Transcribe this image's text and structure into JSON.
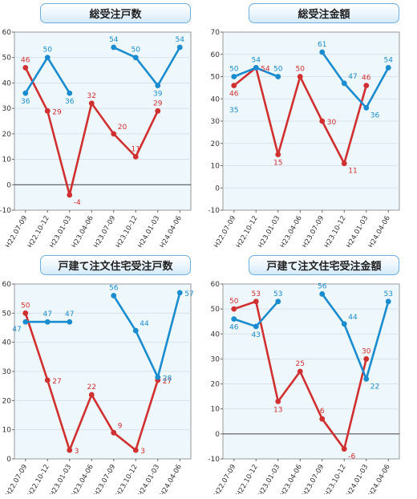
{
  "chart_data": [
    {
      "type": "line",
      "title": "総受注戸数",
      "categories": [
        "H22.07-09",
        "H22.10-12",
        "H23.01-03",
        "H23.04-06",
        "H23.07-09",
        "H23.10-12",
        "H24.01-03",
        "H24.04-06"
      ],
      "ylim": [
        -10,
        60
      ],
      "yticks": [
        -10,
        0,
        10,
        20,
        30,
        40,
        50,
        60
      ],
      "zero_line": true,
      "grid": true,
      "series": [
        {
          "color": "#d03030",
          "values": [
            46,
            29,
            -4,
            32,
            20,
            11,
            29,
            null
          ]
        },
        {
          "color": "#1a8ccf",
          "values": [
            36,
            50,
            36,
            null,
            54,
            50,
            39,
            54
          ]
        }
      ],
      "labels": [
        {
          "series": 0,
          "index": 0,
          "text": "46",
          "pos": "above"
        },
        {
          "series": 0,
          "index": 1,
          "text": "29",
          "pos": "right"
        },
        {
          "series": 0,
          "index": 2,
          "text": "-4",
          "pos": "belowright"
        },
        {
          "series": 0,
          "index": 3,
          "text": "32",
          "pos": "above"
        },
        {
          "series": 0,
          "index": 4,
          "text": "20",
          "pos": "aboveright"
        },
        {
          "series": 0,
          "index": 5,
          "text": "11",
          "pos": "above"
        },
        {
          "series": 0,
          "index": 6,
          "text": "29",
          "pos": "above"
        },
        {
          "series": 1,
          "index": 0,
          "text": "36",
          "pos": "below"
        },
        {
          "series": 1,
          "index": 1,
          "text": "50",
          "pos": "above"
        },
        {
          "series": 1,
          "index": 2,
          "text": "36",
          "pos": "below"
        },
        {
          "series": 1,
          "index": 4,
          "text": "54",
          "pos": "above"
        },
        {
          "series": 1,
          "index": 5,
          "text": "50",
          "pos": "above"
        },
        {
          "series": 1,
          "index": 6,
          "text": "39",
          "pos": "below"
        },
        {
          "series": 1,
          "index": 7,
          "text": "54",
          "pos": "above"
        }
      ]
    },
    {
      "type": "line",
      "title": "総受注金額",
      "categories": [
        "H22.07-09",
        "H22.10-12",
        "H23.01-03",
        "H23.04-06",
        "H23.07-09",
        "H23.10-12",
        "H24.01-03",
        "H24.04-06"
      ],
      "ylim": [
        -10,
        70
      ],
      "yticks": [
        -10,
        0,
        10,
        20,
        30,
        40,
        50,
        60,
        70
      ],
      "zero_line": false,
      "grid": true,
      "series": [
        {
          "color": "#d03030",
          "values": [
            46,
            54,
            15,
            50,
            30,
            11,
            46,
            null
          ]
        },
        {
          "color": "#1a8ccf",
          "values": [
            50,
            54,
            50,
            null,
            61,
            47,
            36,
            54
          ]
        }
      ],
      "labels": [
        {
          "series": 0,
          "index": 0,
          "text": "46",
          "pos": "below"
        },
        {
          "series": 0,
          "index": 1,
          "text": "54",
          "pos": "right"
        },
        {
          "series": 0,
          "index": 2,
          "text": "15",
          "pos": "below"
        },
        {
          "series": 0,
          "index": 3,
          "text": "50",
          "pos": "above"
        },
        {
          "series": 0,
          "index": 4,
          "text": "30",
          "pos": "right"
        },
        {
          "series": 0,
          "index": 5,
          "text": "11",
          "pos": "belowright"
        },
        {
          "series": 0,
          "index": 6,
          "text": "46",
          "pos": "above"
        },
        {
          "series": 1,
          "index": 0,
          "text": "50",
          "pos": "above"
        },
        {
          "series": 1,
          "index": 1,
          "text": "54",
          "pos": "above"
        },
        {
          "series": 1,
          "index": 2,
          "text": "50",
          "pos": "above"
        },
        {
          "series": 1,
          "index": 4,
          "text": "61",
          "pos": "above"
        },
        {
          "series": 1,
          "index": 5,
          "text": "47",
          "pos": "aboveright"
        },
        {
          "series": 1,
          "index": 6,
          "text": "36",
          "pos": "belowright"
        },
        {
          "series": 1,
          "index": 7,
          "text": "54",
          "pos": "above"
        }
      ],
      "free_labels": [
        {
          "text": "35",
          "x_index": 0,
          "y": 35,
          "color": "#1a8ccf"
        }
      ]
    },
    {
      "type": "line",
      "title": "戸建て注文住宅受注戸数",
      "categories": [
        "H22.07-09",
        "H22.10-12",
        "H23.01-03",
        "H23.04-06",
        "H23.07-09",
        "H23.10-12",
        "H24.01-03",
        "H24.04-06"
      ],
      "ylim": [
        0,
        60
      ],
      "yticks": [
        0,
        10,
        20,
        30,
        40,
        50,
        60
      ],
      "zero_line": false,
      "grid": true,
      "series": [
        {
          "color": "#d03030",
          "values": [
            50,
            27,
            3,
            22,
            9,
            3,
            27,
            null
          ]
        },
        {
          "color": "#1a8ccf",
          "values": [
            47,
            47,
            47,
            null,
            56,
            44,
            28,
            57
          ]
        }
      ],
      "labels": [
        {
          "series": 0,
          "index": 0,
          "text": "50",
          "pos": "above"
        },
        {
          "series": 0,
          "index": 1,
          "text": "27",
          "pos": "right"
        },
        {
          "series": 0,
          "index": 2,
          "text": "3",
          "pos": "right"
        },
        {
          "series": 0,
          "index": 3,
          "text": "22",
          "pos": "above"
        },
        {
          "series": 0,
          "index": 4,
          "text": "9",
          "pos": "aboveright"
        },
        {
          "series": 0,
          "index": 5,
          "text": "3",
          "pos": "right"
        },
        {
          "series": 0,
          "index": 6,
          "text": "27",
          "pos": "right"
        },
        {
          "series": 1,
          "index": 0,
          "text": "47",
          "pos": "belowleft"
        },
        {
          "series": 1,
          "index": 1,
          "text": "47",
          "pos": "above"
        },
        {
          "series": 1,
          "index": 2,
          "text": "47",
          "pos": "above"
        },
        {
          "series": 1,
          "index": 4,
          "text": "56",
          "pos": "above"
        },
        {
          "series": 1,
          "index": 5,
          "text": "44",
          "pos": "aboveright"
        },
        {
          "series": 1,
          "index": 6,
          "text": "28",
          "pos": "right"
        },
        {
          "series": 1,
          "index": 7,
          "text": "57",
          "pos": "right"
        }
      ]
    },
    {
      "type": "line",
      "title": "戸建て注文住宅受注金額",
      "categories": [
        "H22.07-09",
        "H22.10-12",
        "H23.01-03",
        "H23.04-06",
        "H23.07-09",
        "H23.10-12",
        "H24.01-03",
        "H24.04-06"
      ],
      "ylim": [
        -10,
        60
      ],
      "yticks": [
        -10,
        0,
        10,
        20,
        30,
        40,
        50,
        60
      ],
      "zero_line": true,
      "grid": true,
      "series": [
        {
          "color": "#d03030",
          "values": [
            50,
            53,
            13,
            25,
            6,
            -6,
            30,
            null
          ]
        },
        {
          "color": "#1a8ccf",
          "values": [
            46,
            43,
            53,
            null,
            56,
            44,
            22,
            53
          ]
        }
      ],
      "labels": [
        {
          "series": 0,
          "index": 0,
          "text": "50",
          "pos": "above"
        },
        {
          "series": 0,
          "index": 1,
          "text": "53",
          "pos": "above"
        },
        {
          "series": 0,
          "index": 2,
          "text": "13",
          "pos": "below"
        },
        {
          "series": 0,
          "index": 3,
          "text": "25",
          "pos": "above"
        },
        {
          "series": 0,
          "index": 4,
          "text": "6",
          "pos": "above"
        },
        {
          "series": 0,
          "index": 5,
          "text": "-6",
          "pos": "belowright"
        },
        {
          "series": 0,
          "index": 6,
          "text": "30",
          "pos": "above"
        },
        {
          "series": 1,
          "index": 0,
          "text": "46",
          "pos": "below"
        },
        {
          "series": 1,
          "index": 1,
          "text": "43",
          "pos": "below"
        },
        {
          "series": 1,
          "index": 2,
          "text": "53",
          "pos": "above"
        },
        {
          "series": 1,
          "index": 4,
          "text": "56",
          "pos": "above"
        },
        {
          "series": 1,
          "index": 5,
          "text": "44",
          "pos": "aboveright"
        },
        {
          "series": 1,
          "index": 6,
          "text": "22",
          "pos": "belowright"
        },
        {
          "series": 1,
          "index": 7,
          "text": "53",
          "pos": "above"
        }
      ]
    }
  ]
}
